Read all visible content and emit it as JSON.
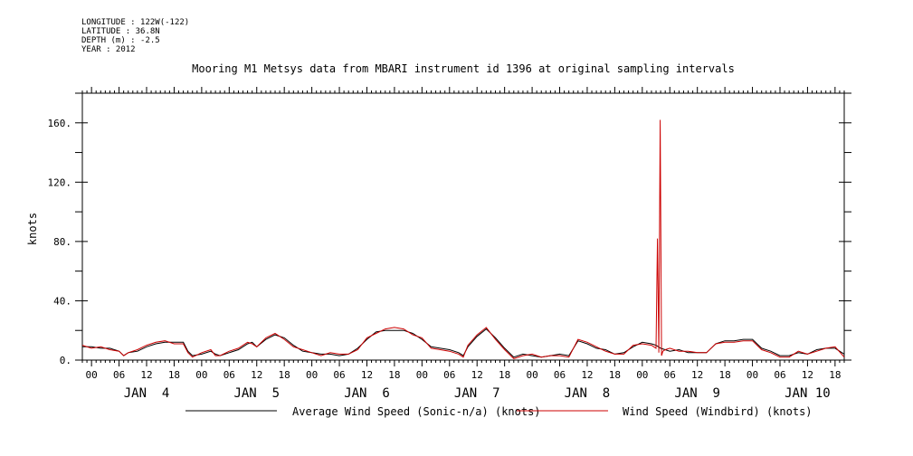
{
  "metadata": [
    "LONGITUDE : 122W(-122)",
    "LATITUDE : 36.8N",
    "DEPTH (m) : -2.5",
    "YEAR : 2012"
  ],
  "colors": {
    "axis": "#000000",
    "series_average": "#000000",
    "series_windbird": "#cc0000"
  },
  "chart_data": {
    "type": "line",
    "title": "Mooring M1 Metsys data from MBARI instrument id 1396 at original sampling intervals",
    "ylabel": "knots",
    "xlabel": "",
    "x_unit": "hours since JAN 3 2012 22:00",
    "xlim": [
      0,
      166
    ],
    "ylim": [
      0,
      180
    ],
    "y_ticks": [
      0,
      40,
      80,
      120,
      160
    ],
    "y_tick_labels": [
      "0.",
      "40.",
      "80.",
      "120.",
      "160."
    ],
    "x_hour_ticks": [
      "00",
      "06",
      "12",
      "18",
      "00",
      "06",
      "12",
      "18",
      "00",
      "06",
      "12",
      "18",
      "00",
      "06",
      "12",
      "18",
      "00",
      "06",
      "12",
      "18",
      "00",
      "06",
      "12",
      "18",
      "00",
      "06",
      "12",
      "18"
    ],
    "day_labels": [
      "JAN  4",
      "JAN  5",
      "JAN  6",
      "JAN  7",
      "JAN  8",
      "JAN  9",
      "JAN 10"
    ],
    "legend": [
      "Average Wind Speed (Sonic-n/a) (knots)",
      "Wind Speed (Windbird) (knots)"
    ],
    "grid": false,
    "series": [
      {
        "name": "Average Wind Speed (Sonic-n/a) (knots)",
        "x": [
          0,
          2,
          4,
          6,
          8,
          9,
          10,
          12,
          14,
          16,
          18,
          20,
          22,
          23,
          24,
          26,
          28,
          29,
          30,
          32,
          34,
          36,
          37,
          38,
          40,
          42,
          44,
          46,
          48,
          50,
          52,
          54,
          56,
          58,
          60,
          62,
          64,
          66,
          68,
          70,
          72,
          74,
          76,
          78,
          80,
          82,
          83,
          84,
          86,
          88,
          90,
          92,
          94,
          96,
          98,
          100,
          102,
          104,
          106,
          108,
          110,
          112,
          114,
          116,
          118,
          120,
          122,
          124,
          125,
          126,
          128,
          130,
          132,
          134,
          136,
          138,
          140,
          142,
          144,
          146,
          148,
          150,
          152,
          154,
          156,
          158,
          160,
          162,
          164,
          166
        ],
        "y": [
          9,
          9,
          8,
          8,
          6,
          3,
          5,
          6,
          9,
          11,
          12,
          12,
          12,
          6,
          3,
          4,
          6,
          4,
          3,
          5,
          7,
          11,
          12,
          9,
          14,
          17,
          15,
          10,
          6,
          5,
          4,
          4,
          3,
          4,
          8,
          14,
          19,
          20,
          20,
          20,
          18,
          14,
          9,
          8,
          7,
          5,
          3,
          9,
          16,
          21,
          15,
          8,
          2,
          4,
          3,
          2,
          3,
          4,
          3,
          13,
          11,
          8,
          7,
          4,
          5,
          9,
          12,
          11,
          10,
          8,
          6,
          7,
          5,
          5,
          5,
          11,
          13,
          13,
          14,
          14,
          8,
          6,
          3,
          3,
          5,
          4,
          7,
          8,
          8,
          4
        ]
      },
      {
        "name": "Wind Speed (Windbird) (knots)",
        "x": [
          0,
          2,
          4,
          6,
          8,
          9,
          10,
          12,
          14,
          16,
          18,
          20,
          22,
          23,
          24,
          26,
          28,
          29,
          30,
          32,
          34,
          36,
          37,
          38,
          40,
          42,
          44,
          46,
          48,
          50,
          52,
          54,
          56,
          58,
          60,
          62,
          64,
          66,
          68,
          70,
          72,
          74,
          76,
          78,
          80,
          82,
          83,
          84,
          86,
          88,
          90,
          92,
          94,
          96,
          98,
          100,
          102,
          104,
          106,
          108,
          110,
          112,
          114,
          116,
          118,
          120,
          122,
          124,
          125,
          125.3,
          125.6,
          125.9,
          126.2,
          126.5,
          127,
          128,
          130,
          132,
          134,
          136,
          138,
          140,
          142,
          144,
          146,
          148,
          150,
          152,
          154,
          156,
          158,
          160,
          162,
          164,
          166
        ],
        "y": [
          10,
          8,
          9,
          7,
          6,
          3,
          5,
          7,
          10,
          12,
          13,
          11,
          11,
          5,
          2,
          5,
          7,
          3,
          3,
          6,
          8,
          12,
          11,
          9,
          15,
          18,
          14,
          9,
          7,
          5,
          3,
          5,
          4,
          4,
          7,
          15,
          18,
          21,
          22,
          21,
          17,
          15,
          8,
          7,
          6,
          4,
          2,
          10,
          17,
          22,
          14,
          7,
          1,
          3,
          4,
          2,
          3,
          3,
          2,
          14,
          12,
          9,
          6,
          4,
          4,
          10,
          11,
          10,
          8,
          82,
          5,
          162,
          3,
          6,
          7,
          8,
          6,
          6,
          5,
          5,
          11,
          12,
          12,
          13,
          13,
          7,
          5,
          2,
          2,
          6,
          4,
          6,
          8,
          9,
          2
        ]
      }
    ]
  }
}
